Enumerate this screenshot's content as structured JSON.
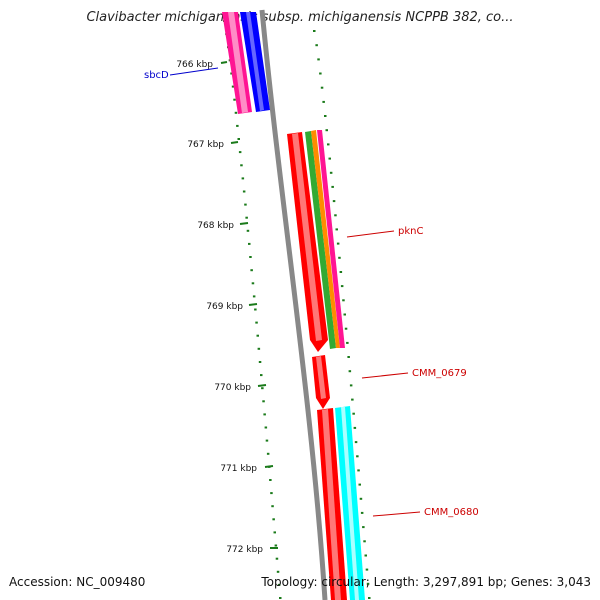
{
  "title": "Clavibacter michiganensis subsp. michiganensis NCPPB 382, co...",
  "footer": {
    "accession": "Accession: NC_009480",
    "summary": "Topology: circular; Length: 3,297,891 bp; Genes: 3,043"
  },
  "ruler": {
    "ticks": [
      "766 kbp",
      "767 kbp",
      "768 kbp",
      "769 kbp",
      "770 kbp",
      "771 kbp",
      "772 kbp"
    ],
    "tick_color": "#1a7a1a"
  },
  "backbone_color": "#888888",
  "features": [
    {
      "label": "sbcD",
      "label_color": "#0000cc",
      "strand": "reverse",
      "track_colors": [
        "#ff1493",
        "#0000ff"
      ]
    },
    {
      "label": "pknC",
      "label_color": "#cc0000",
      "strand": "forward",
      "track_colors": [
        "#ff0000",
        "#33aa33",
        "#ff8c00",
        "#ff1493"
      ]
    },
    {
      "label": "CMM_0679",
      "label_color": "#cc0000",
      "strand": "forward",
      "track_colors": [
        "#ff0000"
      ]
    },
    {
      "label": "CMM_0680",
      "label_color": "#cc0000",
      "strand": "forward",
      "track_colors": [
        "#ff0000",
        "#00ffff"
      ]
    }
  ]
}
